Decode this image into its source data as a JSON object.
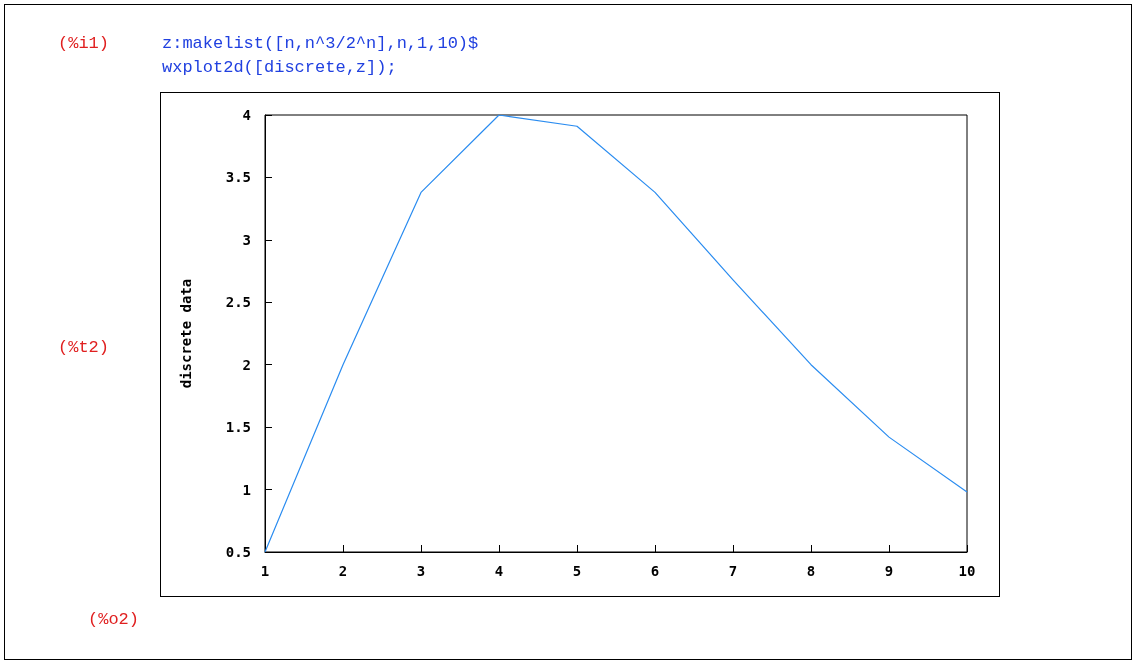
{
  "chart_data": {
    "type": "line",
    "ylabel": "discrete data",
    "annotations": [
      "(%i1)",
      "z:makelist([n,n^3/2^n],n,1,10)$",
      "wxplot2d([discrete,z]);",
      "(%t2)",
      "(%o2)"
    ],
    "x": [
      1,
      2,
      3,
      4,
      5,
      6,
      7,
      8,
      9,
      10
    ],
    "series": [
      {
        "color": "#2a8cf0",
        "values": [
          0.5,
          2,
          3.38,
          4,
          3.91,
          3.38,
          2.68,
          2,
          1.42,
          0.98
        ]
      }
    ],
    "xlim": [
      1,
      10
    ],
    "xticks": [
      1,
      2,
      3,
      4,
      5,
      6,
      7,
      8,
      9,
      10
    ],
    "ylim": [
      0.5,
      4
    ],
    "yticks": [
      0.5,
      1,
      1.5,
      2,
      2.5,
      3,
      3.5,
      4
    ],
    "marker": "none",
    "line_style": "solid"
  }
}
